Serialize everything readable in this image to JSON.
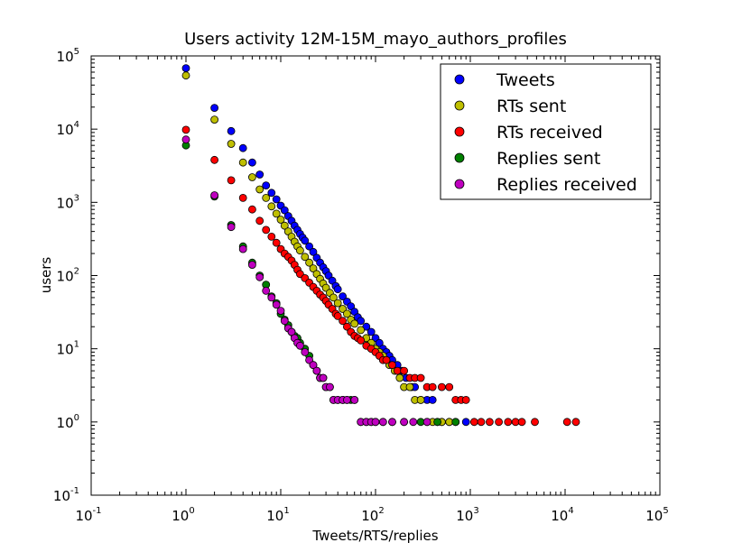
{
  "chart_data": {
    "type": "scatter",
    "title": "Users activity 12M-15M_mayo_authors_profiles",
    "xlabel": "Tweets/RTS/replies",
    "ylabel": "users",
    "xscale": "log",
    "yscale": "log",
    "xlim": [
      0.1,
      100000
    ],
    "ylim": [
      0.1,
      100000
    ],
    "x_tick_labels": [
      {
        "base": "10",
        "exp": "-1"
      },
      {
        "base": "10",
        "exp": "0"
      },
      {
        "base": "10",
        "exp": "1"
      },
      {
        "base": "10",
        "exp": "2"
      },
      {
        "base": "10",
        "exp": "3"
      },
      {
        "base": "10",
        "exp": "4"
      },
      {
        "base": "10",
        "exp": "5"
      }
    ],
    "y_tick_labels": [
      {
        "base": "10",
        "exp": "-1"
      },
      {
        "base": "10",
        "exp": "0"
      },
      {
        "base": "10",
        "exp": "1"
      },
      {
        "base": "10",
        "exp": "2"
      },
      {
        "base": "10",
        "exp": "3"
      },
      {
        "base": "10",
        "exp": "4"
      },
      {
        "base": "10",
        "exp": "5"
      }
    ],
    "grid": false,
    "legend_position": "top-right",
    "series": [
      {
        "name": "Tweets",
        "color": "#0000ff",
        "points": [
          [
            1,
            68000
          ],
          [
            2,
            19500
          ],
          [
            3,
            9400
          ],
          [
            4,
            5500
          ],
          [
            5,
            3500
          ],
          [
            6,
            2400
          ],
          [
            7,
            1700
          ],
          [
            8,
            1350
          ],
          [
            9,
            1100
          ],
          [
            10,
            900
          ],
          [
            11,
            780
          ],
          [
            12,
            650
          ],
          [
            13,
            560
          ],
          [
            14,
            480
          ],
          [
            15,
            420
          ],
          [
            16,
            370
          ],
          [
            17,
            330
          ],
          [
            18,
            300
          ],
          [
            20,
            250
          ],
          [
            22,
            210
          ],
          [
            24,
            175
          ],
          [
            26,
            150
          ],
          [
            28,
            130
          ],
          [
            30,
            115
          ],
          [
            32,
            100
          ],
          [
            35,
            85
          ],
          [
            38,
            72
          ],
          [
            40,
            65
          ],
          [
            45,
            52
          ],
          [
            50,
            44
          ],
          [
            55,
            38
          ],
          [
            60,
            32
          ],
          [
            65,
            27
          ],
          [
            70,
            24
          ],
          [
            80,
            20
          ],
          [
            90,
            17
          ],
          [
            100,
            14
          ],
          [
            110,
            12
          ],
          [
            120,
            10
          ],
          [
            130,
            9
          ],
          [
            140,
            8
          ],
          [
            150,
            7
          ],
          [
            170,
            6
          ],
          [
            190,
            5
          ],
          [
            210,
            4
          ],
          [
            240,
            3
          ],
          [
            260,
            3
          ],
          [
            300,
            2
          ],
          [
            350,
            2
          ],
          [
            400,
            2
          ],
          [
            450,
            1
          ],
          [
            500,
            1
          ],
          [
            600,
            1
          ],
          [
            700,
            1
          ],
          [
            900,
            1
          ]
        ]
      },
      {
        "name": "RTs sent",
        "color": "#bfbf00",
        "points": [
          [
            1,
            54000
          ],
          [
            2,
            13500
          ],
          [
            3,
            6300
          ],
          [
            4,
            3500
          ],
          [
            5,
            2200
          ],
          [
            6,
            1500
          ],
          [
            7,
            1150
          ],
          [
            8,
            880
          ],
          [
            9,
            700
          ],
          [
            10,
            580
          ],
          [
            11,
            480
          ],
          [
            12,
            400
          ],
          [
            13,
            340
          ],
          [
            14,
            290
          ],
          [
            15,
            250
          ],
          [
            16,
            220
          ],
          [
            18,
            180
          ],
          [
            20,
            150
          ],
          [
            22,
            125
          ],
          [
            24,
            105
          ],
          [
            26,
            90
          ],
          [
            28,
            78
          ],
          [
            30,
            68
          ],
          [
            33,
            58
          ],
          [
            36,
            50
          ],
          [
            40,
            42
          ],
          [
            45,
            35
          ],
          [
            50,
            30
          ],
          [
            55,
            25
          ],
          [
            60,
            22
          ],
          [
            70,
            18
          ],
          [
            80,
            14
          ],
          [
            90,
            12
          ],
          [
            100,
            10
          ],
          [
            110,
            9
          ],
          [
            120,
            8
          ],
          [
            140,
            6
          ],
          [
            160,
            5
          ],
          [
            180,
            4
          ],
          [
            200,
            3
          ],
          [
            230,
            3
          ],
          [
            260,
            2
          ],
          [
            300,
            2
          ],
          [
            350,
            1
          ],
          [
            400,
            1
          ],
          [
            500,
            1
          ],
          [
            600,
            1
          ]
        ]
      },
      {
        "name": "RTs received",
        "color": "#ff0000",
        "points": [
          [
            1,
            9800
          ],
          [
            2,
            3800
          ],
          [
            3,
            2000
          ],
          [
            4,
            1150
          ],
          [
            5,
            800
          ],
          [
            6,
            560
          ],
          [
            7,
            420
          ],
          [
            8,
            340
          ],
          [
            9,
            280
          ],
          [
            10,
            230
          ],
          [
            11,
            200
          ],
          [
            12,
            180
          ],
          [
            13,
            160
          ],
          [
            14,
            140
          ],
          [
            15,
            120
          ],
          [
            16,
            105
          ],
          [
            18,
            92
          ],
          [
            20,
            80
          ],
          [
            22,
            70
          ],
          [
            24,
            62
          ],
          [
            26,
            55
          ],
          [
            28,
            50
          ],
          [
            30,
            45
          ],
          [
            32,
            40
          ],
          [
            35,
            35
          ],
          [
            38,
            30
          ],
          [
            40,
            28
          ],
          [
            45,
            24
          ],
          [
            50,
            20
          ],
          [
            55,
            17
          ],
          [
            60,
            15
          ],
          [
            65,
            14
          ],
          [
            70,
            13
          ],
          [
            80,
            11
          ],
          [
            90,
            10
          ],
          [
            100,
            9
          ],
          [
            110,
            8
          ],
          [
            120,
            7
          ],
          [
            130,
            7
          ],
          [
            150,
            6
          ],
          [
            170,
            5
          ],
          [
            200,
            5
          ],
          [
            230,
            4
          ],
          [
            260,
            4
          ],
          [
            300,
            4
          ],
          [
            350,
            3
          ],
          [
            400,
            3
          ],
          [
            500,
            3
          ],
          [
            600,
            3
          ],
          [
            700,
            2
          ],
          [
            800,
            2
          ],
          [
            900,
            2
          ],
          [
            1100,
            1
          ],
          [
            1300,
            1
          ],
          [
            1600,
            1
          ],
          [
            2000,
            1
          ],
          [
            2500,
            1
          ],
          [
            3000,
            1
          ],
          [
            3500,
            1
          ],
          [
            4800,
            1
          ],
          [
            10500,
            1
          ],
          [
            13000,
            1
          ]
        ]
      },
      {
        "name": "Replies sent",
        "color": "#008000",
        "points": [
          [
            1,
            6000
          ],
          [
            2,
            1200
          ],
          [
            3,
            490
          ],
          [
            4,
            250
          ],
          [
            5,
            150
          ],
          [
            6,
            100
          ],
          [
            7,
            75
          ],
          [
            8,
            52
          ],
          [
            9,
            42
          ],
          [
            10,
            30
          ],
          [
            11,
            25
          ],
          [
            12,
            21
          ],
          [
            13,
            17
          ],
          [
            14,
            15
          ],
          [
            15,
            14
          ],
          [
            16,
            12
          ],
          [
            18,
            10
          ],
          [
            20,
            8
          ],
          [
            22,
            6
          ],
          [
            24,
            5
          ],
          [
            26,
            4
          ],
          [
            28,
            4
          ],
          [
            30,
            3
          ],
          [
            33,
            3
          ],
          [
            36,
            2
          ],
          [
            40,
            2
          ],
          [
            45,
            2
          ],
          [
            50,
            2
          ],
          [
            55,
            2
          ],
          [
            60,
            2
          ],
          [
            70,
            1
          ],
          [
            80,
            1
          ],
          [
            90,
            1
          ],
          [
            100,
            1
          ],
          [
            120,
            1
          ],
          [
            150,
            1
          ],
          [
            200,
            1
          ],
          [
            300,
            1
          ],
          [
            450,
            1
          ],
          [
            700,
            1
          ]
        ]
      },
      {
        "name": "Replies received",
        "color": "#bf00bf",
        "points": [
          [
            1,
            7200
          ],
          [
            2,
            1250
          ],
          [
            3,
            460
          ],
          [
            4,
            230
          ],
          [
            5,
            140
          ],
          [
            6,
            95
          ],
          [
            7,
            62
          ],
          [
            8,
            50
          ],
          [
            9,
            40
          ],
          [
            10,
            33
          ],
          [
            11,
            24
          ],
          [
            12,
            19
          ],
          [
            13,
            17
          ],
          [
            14,
            14
          ],
          [
            15,
            12
          ],
          [
            16,
            11
          ],
          [
            18,
            9
          ],
          [
            20,
            7
          ],
          [
            22,
            6
          ],
          [
            24,
            5
          ],
          [
            26,
            4
          ],
          [
            28,
            4
          ],
          [
            30,
            3
          ],
          [
            33,
            3
          ],
          [
            36,
            2
          ],
          [
            40,
            2
          ],
          [
            45,
            2
          ],
          [
            50,
            2
          ],
          [
            60,
            2
          ],
          [
            70,
            1
          ],
          [
            80,
            1
          ],
          [
            90,
            1
          ],
          [
            100,
            1
          ],
          [
            120,
            1
          ],
          [
            150,
            1
          ],
          [
            200,
            1
          ],
          [
            250,
            1
          ],
          [
            350,
            1
          ]
        ]
      }
    ]
  }
}
